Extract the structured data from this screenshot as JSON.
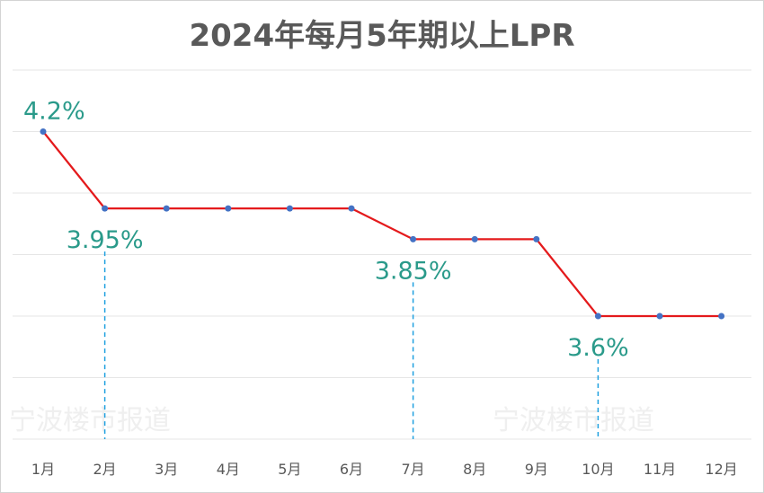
{
  "title": "2024年每月5年期以上LPR",
  "watermark": "宁波楼市报道",
  "colors": {
    "line": "#e41a1c",
    "marker": "#4472c4",
    "label": "#2a9a8a",
    "guide": "#1ea0e0",
    "grid": "#e6e6e6"
  },
  "chart_data": {
    "type": "line",
    "title": "2024年每月5年期以上LPR",
    "xlabel": "",
    "ylabel": "",
    "categories": [
      "1月",
      "2月",
      "3月",
      "4月",
      "5月",
      "6月",
      "7月",
      "8月",
      "9月",
      "10月",
      "11月",
      "12月"
    ],
    "series": [
      {
        "values": [
          4.2,
          3.95,
          3.95,
          3.95,
          3.95,
          3.95,
          3.85,
          3.85,
          3.85,
          3.6,
          3.6,
          3.6
        ]
      }
    ],
    "ylim": [
      3.2,
      4.4
    ],
    "grid": true,
    "legend": "none",
    "annotations": [
      {
        "index": 0,
        "text": "4.2%"
      },
      {
        "index": 1,
        "text": "3.95%",
        "guide": true
      },
      {
        "index": 6,
        "text": "3.85%",
        "guide": true
      },
      {
        "index": 9,
        "text": "3.6%",
        "guide": true
      }
    ]
  }
}
